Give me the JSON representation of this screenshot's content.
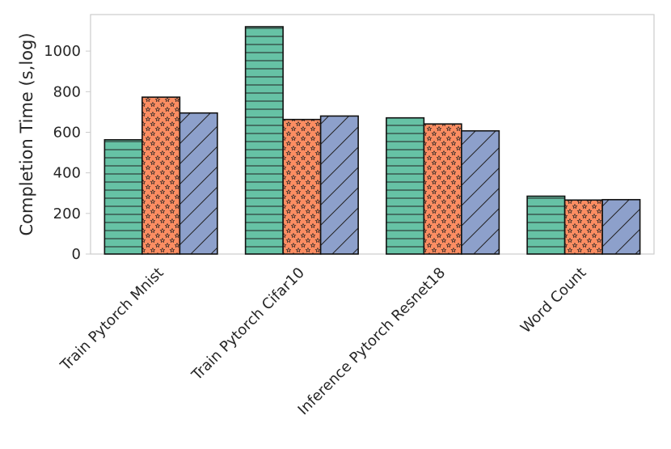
{
  "chart_data": {
    "type": "bar",
    "title": "",
    "xlabel": "",
    "ylabel": "Completion Time (s,log)",
    "ylim": [
      0,
      1180
    ],
    "yticks": [
      0,
      200,
      400,
      600,
      800,
      1000
    ],
    "grid": false,
    "legend": "none",
    "categories": [
      "Train Pytorch Mnist",
      "Train Pytorch Cifar10",
      "Inference Pytorch Resnet18",
      "Word Count"
    ],
    "series": [
      {
        "values": [
          563,
          1120,
          671,
          285
        ],
        "color": "#66c2a5",
        "pattern": "horizontal-lines"
      },
      {
        "values": [
          773,
          663,
          641,
          266
        ],
        "color": "#fc8d62",
        "pattern": "stars"
      },
      {
        "values": [
          695,
          680,
          607,
          268
        ],
        "color": "#8da0cb",
        "pattern": "diagonal-lines"
      }
    ]
  }
}
